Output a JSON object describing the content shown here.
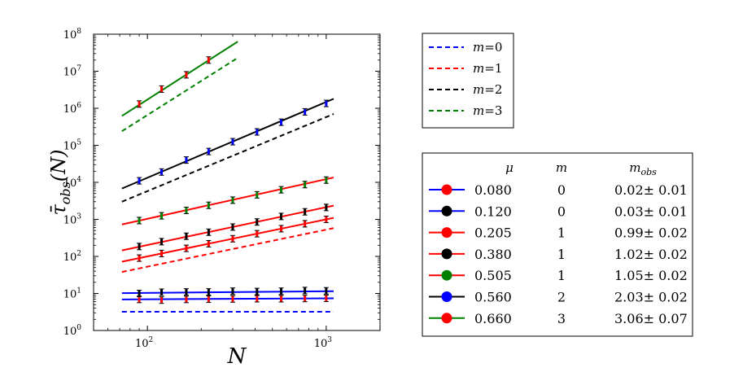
{
  "chart_data": {
    "type": "line",
    "xscale": "log",
    "yscale": "log",
    "xlim": [
      50,
      2000
    ],
    "ylim": [
      1,
      100000000
    ],
    "xlabel": "N",
    "ylabel": "τ̄obs(N)",
    "ylabel_main": "τ̄",
    "ylabel_sub": "obs",
    "ylabel_tail": "(N)",
    "x_ticks": [
      {
        "value": 100,
        "base": "10",
        "exp": "2"
      },
      {
        "value": 1000,
        "base": "10",
        "exp": "3"
      }
    ],
    "y_ticks": [
      {
        "value": 1,
        "base": "10",
        "exp": "0"
      },
      {
        "value": 10,
        "base": "10",
        "exp": "1"
      },
      {
        "value": 100,
        "base": "10",
        "exp": "2"
      },
      {
        "value": 1000,
        "base": "10",
        "exp": "3"
      },
      {
        "value": 10000,
        "base": "10",
        "exp": "4"
      },
      {
        "value": 100000,
        "base": "10",
        "exp": "5"
      },
      {
        "value": 1000000,
        "base": "10",
        "exp": "6"
      },
      {
        "value": 10000000,
        "base": "10",
        "exp": "7"
      },
      {
        "value": 100000000,
        "base": "10",
        "exp": "8"
      }
    ],
    "theory_legend": [
      {
        "m_label": "m",
        "eq": "=",
        "value": "0",
        "color": "#0000ff"
      },
      {
        "m_label": "m",
        "eq": "=",
        "value": "1",
        "color": "#ff0000"
      },
      {
        "m_label": "m",
        "eq": "=",
        "value": "2",
        "color": "#000000"
      },
      {
        "m_label": "m",
        "eq": "=",
        "value": "3",
        "color": "#008000"
      }
    ],
    "theory_lines": [
      {
        "m": 0,
        "color": "#0000ff",
        "x": [
          72,
          1100
        ],
        "y": [
          3.2,
          3.2
        ]
      },
      {
        "m": 1,
        "color": "#ff0000",
        "x": [
          72,
          1100
        ],
        "y": [
          38,
          580
        ]
      },
      {
        "m": 2,
        "color": "#000000",
        "x": [
          72,
          1100
        ],
        "y": [
          3000,
          700000
        ]
      },
      {
        "m": 3,
        "color": "#008000",
        "x": [
          72,
          320
        ],
        "y": [
          240000,
          23000000
        ]
      }
    ],
    "table_headers": {
      "mu": "μ",
      "m": "m",
      "mobs": "m",
      "mobs_sub": "obs"
    },
    "series": [
      {
        "mu": "0.080",
        "m": "0",
        "mobs": "0.02± 0.01",
        "line_color": "#0000ff",
        "marker_color": "#ff0000",
        "fit_x": [
          72,
          1100
        ],
        "fit_y": [
          6.9,
          7.4
        ],
        "x": [
          90,
          120,
          165,
          220,
          300,
          410,
          560,
          760,
          1000
        ],
        "y": [
          6.9,
          6.6,
          6.9,
          7.0,
          7.1,
          7.2,
          7.2,
          7.3,
          7.4
        ]
      },
      {
        "mu": "0.120",
        "m": "0",
        "mobs": "0.03± 0.01",
        "line_color": "#0000ff",
        "marker_color": "#000000",
        "fit_x": [
          72,
          1100
        ],
        "fit_y": [
          10.2,
          11.5
        ],
        "x": [
          90,
          120,
          165,
          220,
          300,
          410,
          560,
          760,
          1000
        ],
        "y": [
          10,
          10.8,
          11,
          11,
          11.5,
          11.3,
          11.5,
          12,
          11.8
        ]
      },
      {
        "mu": "0.205",
        "m": "1",
        "mobs": "0.99± 0.02",
        "line_color": "#ff0000",
        "marker_color": "#ff0000",
        "fit_x": [
          72,
          1100
        ],
        "fit_y": [
          72,
          1100
        ],
        "x": [
          90,
          120,
          165,
          220,
          300,
          410,
          560,
          760,
          1000
        ],
        "y": [
          90,
          120,
          165,
          220,
          300,
          410,
          560,
          760,
          1000
        ]
      },
      {
        "mu": "0.380",
        "m": "1",
        "mobs": "1.02± 0.02",
        "line_color": "#ff0000",
        "marker_color": "#000000",
        "fit_x": [
          72,
          1100
        ],
        "fit_y": [
          145,
          2350
        ],
        "x": [
          90,
          120,
          165,
          220,
          300,
          410,
          560,
          760,
          1000
        ],
        "y": [
          185,
          250,
          350,
          450,
          620,
          850,
          1200,
          1600,
          2100
        ]
      },
      {
        "mu": "0.505",
        "m": "1",
        "mobs": "1.05± 0.02",
        "line_color": "#ff0000",
        "marker_color": "#008000",
        "fit_x": [
          72,
          1100
        ],
        "fit_y": [
          730,
          13500
        ],
        "x": [
          90,
          120,
          165,
          220,
          300,
          410,
          560,
          760,
          1000
        ],
        "y": [
          930,
          1250,
          1750,
          2400,
          3300,
          4600,
          6300,
          8700,
          11500
        ]
      },
      {
        "mu": "0.560",
        "m": "2",
        "mobs": "2.03± 0.02",
        "line_color": "#000000",
        "marker_color": "#0000ff",
        "fit_x": [
          72,
          1100
        ],
        "fit_y": [
          6800,
          1800000
        ],
        "x": [
          90,
          120,
          165,
          220,
          300,
          410,
          560,
          760,
          1000
        ],
        "y": [
          11000,
          19000,
          40000,
          68000,
          125000,
          230000,
          420000,
          800000,
          1350000
        ]
      },
      {
        "mu": "0.660",
        "m": "3",
        "mobs": "3.06± 0.07",
        "line_color": "#008000",
        "marker_color": "#ff0000",
        "fit_x": [
          72,
          320
        ],
        "fit_y": [
          620000,
          63000000
        ],
        "x": [
          90,
          120,
          165,
          220
        ],
        "y": [
          1300000,
          3300000,
          8000000,
          20000000
        ]
      }
    ]
  }
}
